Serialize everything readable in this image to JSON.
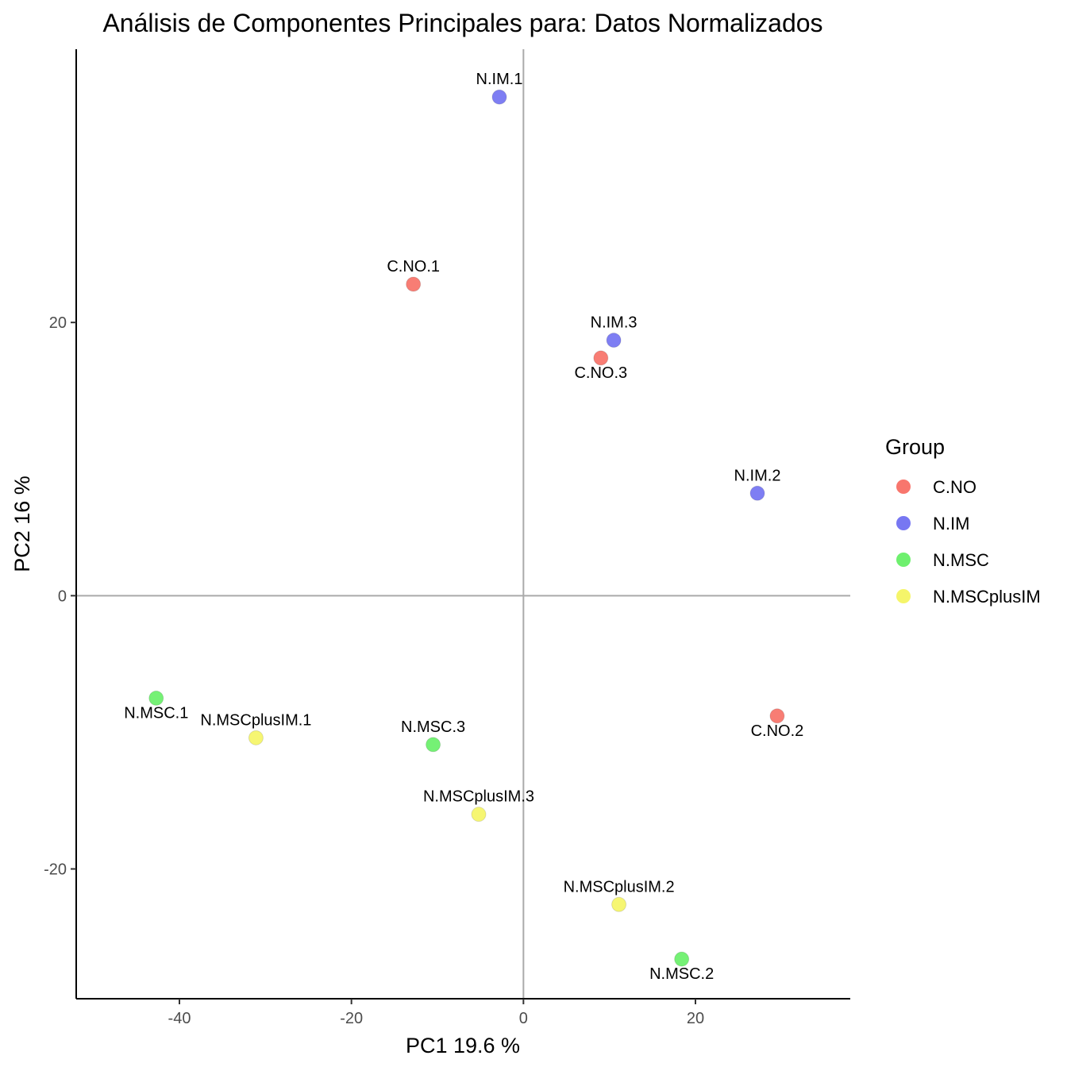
{
  "chart_data": {
    "type": "scatter",
    "title": "Análisis de Componentes Principales para: Datos Normalizados",
    "xlabel": "PC1 19.6 %",
    "ylabel": "PC2 16 %",
    "xlim": [
      -52,
      38
    ],
    "ylim": [
      -29.5,
      40
    ],
    "xticks": [
      -40,
      -20,
      0,
      20
    ],
    "yticks": [
      -20,
      0,
      20
    ],
    "reference_lines": {
      "x": 0,
      "y": 0
    },
    "grid": false,
    "legend": {
      "title": "Group",
      "position": "right",
      "entries": [
        {
          "name": "C.NO",
          "color": "#F8766D"
        },
        {
          "name": "N.IM",
          "color": "#7777F2"
        },
        {
          "name": "N.MSC",
          "color": "#6EF06E"
        },
        {
          "name": "N.MSCplusIM",
          "color": "#F5F56A"
        }
      ]
    },
    "points": [
      {
        "label": "N.IM.1",
        "group": "N.IM",
        "x": -2.8,
        "y": 36.5,
        "label_pos": "above"
      },
      {
        "label": "C.NO.1",
        "group": "C.NO",
        "x": -12.8,
        "y": 22.8,
        "label_pos": "above"
      },
      {
        "label": "N.IM.3",
        "group": "N.IM",
        "x": 10.5,
        "y": 18.7,
        "label_pos": "above"
      },
      {
        "label": "C.NO.3",
        "group": "C.NO",
        "x": 9.0,
        "y": 17.4,
        "label_pos": "below"
      },
      {
        "label": "N.IM.2",
        "group": "N.IM",
        "x": 27.2,
        "y": 7.5,
        "label_pos": "above"
      },
      {
        "label": "N.MSC.1",
        "group": "N.MSC",
        "x": -42.7,
        "y": -7.5,
        "label_pos": "below"
      },
      {
        "label": "N.MSCplusIM.1",
        "group": "N.MSCplusIM",
        "x": -31.1,
        "y": -10.4,
        "label_pos": "above"
      },
      {
        "label": "N.MSC.3",
        "group": "N.MSC",
        "x": -10.5,
        "y": -10.9,
        "label_pos": "above"
      },
      {
        "label": "C.NO.2",
        "group": "C.NO",
        "x": 29.5,
        "y": -8.8,
        "label_pos": "below"
      },
      {
        "label": "N.MSCplusIM.3",
        "group": "N.MSCplusIM",
        "x": -5.2,
        "y": -16.0,
        "label_pos": "above"
      },
      {
        "label": "N.MSCplusIM.2",
        "group": "N.MSCplusIM",
        "x": 11.1,
        "y": -22.6,
        "label_pos": "above"
      },
      {
        "label": "N.MSC.2",
        "group": "N.MSC",
        "x": 18.4,
        "y": -26.6,
        "label_pos": "below"
      }
    ]
  }
}
